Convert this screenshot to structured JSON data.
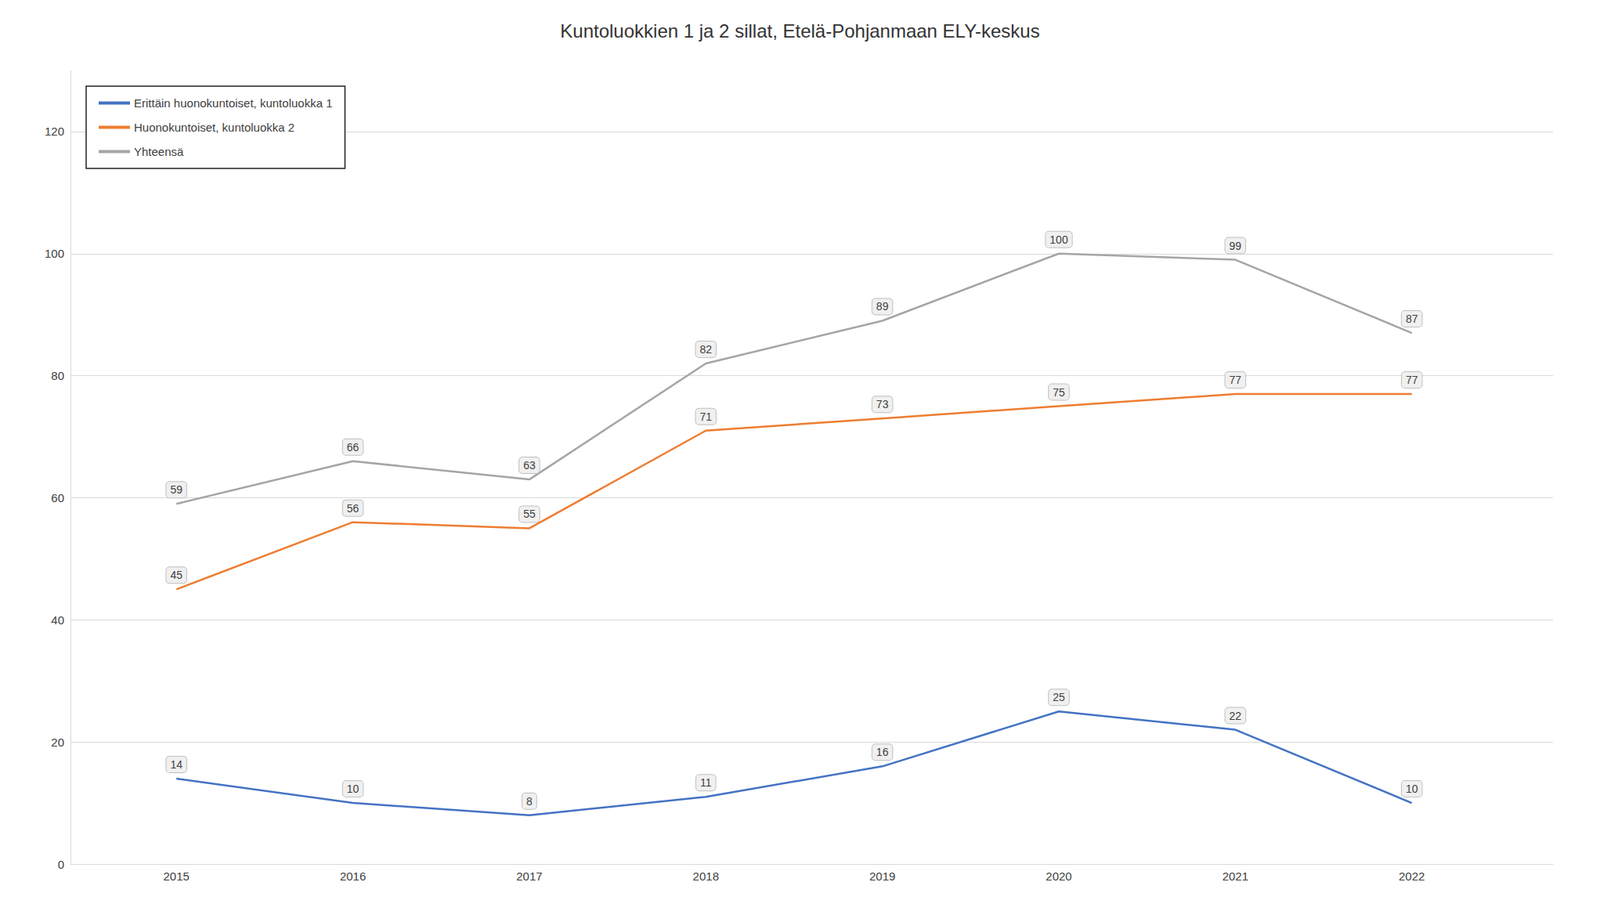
{
  "chart_data": {
    "type": "line",
    "title": "Kuntoluokkien 1 ja 2 sillat, Etelä-Pohjanmaan ELY-keskus",
    "x": [
      2015,
      2016,
      2017,
      2018,
      2019,
      2020,
      2021,
      2022
    ],
    "series": [
      {
        "name": "Erittäin huonokuntoiset, kuntoluokka 1",
        "color": "#4472C4",
        "values": [
          14,
          10,
          8,
          11,
          16,
          25,
          22,
          10
        ]
      },
      {
        "name": "Huonokuntoiset, kuntoluokka 2",
        "color": "#ED7D31",
        "values": [
          45,
          56,
          55,
          71,
          73,
          75,
          77,
          77
        ]
      },
      {
        "name": "Yhteensä",
        "color": "#A5A5A5",
        "values": [
          59,
          66,
          63,
          82,
          89,
          100,
          99,
          87
        ]
      }
    ],
    "xlim": [
      2014.4,
      2022.8
    ],
    "xticks": [
      2015,
      2016,
      2017,
      2018,
      2019,
      2020,
      2021,
      2022
    ],
    "ylim": [
      0,
      130
    ],
    "yticks": [
      0,
      20,
      40,
      60,
      80,
      100,
      120
    ],
    "grid": true,
    "legend": "upper left",
    "data_labels": true
  }
}
